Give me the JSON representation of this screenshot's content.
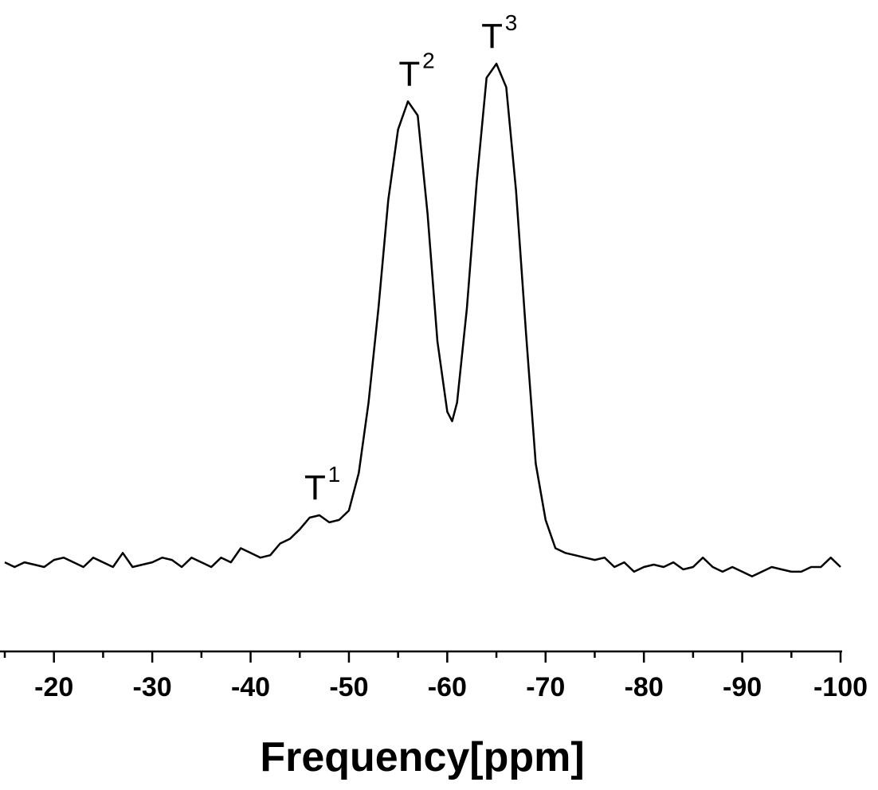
{
  "chart_data": {
    "type": "line",
    "title": "",
    "xlabel": "Frequency[ppm]",
    "ylabel": "",
    "xlim": [
      -15,
      -100
    ],
    "ylim": [
      0,
      1.05
    ],
    "x_reversed": true,
    "x_ticks": [
      -20,
      -30,
      -40,
      -50,
      -60,
      -70,
      -80,
      -90,
      -100
    ],
    "x_tick_labels": [
      "-20",
      "-30",
      "-40",
      "-50",
      "-60",
      "-70",
      "-80",
      "-90",
      "-100"
    ],
    "y_axis_visible": false,
    "grid": false,
    "legend": "none",
    "line_color": "#000000",
    "series": [
      {
        "x": [
          -15,
          -16,
          -17,
          -18,
          -19,
          -20,
          -21,
          -22,
          -23,
          -24,
          -25,
          -26,
          -27,
          -28,
          -29,
          -30,
          -31,
          -32,
          -33,
          -34,
          -35,
          -36,
          -37,
          -38,
          -39,
          -40,
          -41,
          -42,
          -43,
          -44,
          -45,
          -46,
          -47,
          -48,
          -49,
          -50,
          -51,
          -52,
          -53,
          -54,
          -55,
          -56,
          -57,
          -58,
          -59,
          -60,
          -60.5,
          -61,
          -62,
          -63,
          -64,
          -65,
          -66,
          -67,
          -68,
          -69,
          -70,
          -71,
          -72,
          -73,
          -74,
          -75,
          -76,
          -77,
          -78,
          -79,
          -80,
          -81,
          -82,
          -83,
          -84,
          -85,
          -86,
          -87,
          -88,
          -89,
          -90,
          -91,
          -92,
          -93,
          -94,
          -95,
          -96,
          -97,
          -98,
          -99,
          -100
        ],
        "values": [
          0.01,
          0.0,
          0.01,
          0.005,
          0.0,
          0.015,
          0.02,
          0.01,
          0.0,
          0.02,
          0.01,
          0.0,
          0.03,
          0.0,
          0.005,
          0.01,
          0.02,
          0.015,
          0.0,
          0.02,
          0.01,
          0.0,
          0.02,
          0.01,
          0.04,
          0.03,
          0.02,
          0.025,
          0.05,
          0.06,
          0.08,
          0.105,
          0.11,
          0.095,
          0.1,
          0.12,
          0.2,
          0.35,
          0.55,
          0.78,
          0.93,
          0.99,
          0.96,
          0.75,
          0.48,
          0.33,
          0.31,
          0.35,
          0.55,
          0.82,
          1.04,
          1.07,
          1.02,
          0.8,
          0.5,
          0.22,
          0.1,
          0.04,
          0.03,
          0.025,
          0.02,
          0.015,
          0.02,
          0.0,
          0.01,
          -0.01,
          0.0,
          0.005,
          0.0,
          0.01,
          -0.005,
          0.0,
          0.02,
          0.0,
          -0.01,
          0.0,
          -0.01,
          -0.02,
          -0.01,
          0.0,
          -0.005,
          -0.01,
          -0.01,
          0.0,
          0.0,
          0.02,
          0.0
        ]
      }
    ],
    "annotations": [
      {
        "base": "T",
        "sup": "1",
        "x": -47.2,
        "y": 0.11
      },
      {
        "base": "T",
        "sup": "2",
        "x": -56.8,
        "y": 0.99
      },
      {
        "base": "T",
        "sup": "3",
        "x": -65.2,
        "y": 1.07
      }
    ]
  }
}
